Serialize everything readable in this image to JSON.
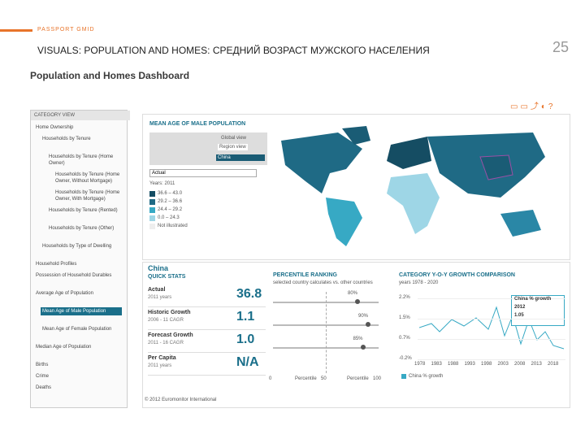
{
  "header": {
    "brand": "PASSPORT GMID",
    "title": "VISUALS: POPULATION AND HOMES: СРЕДНИЙ ВОЗРАСТ МУЖСКОГО НАСЕЛЕНИЯ",
    "page_number": "25"
  },
  "dashboard": {
    "title": "Population and Homes Dashboard",
    "sidebar": {
      "title": "CATEGORY VIEW",
      "items": [
        "Home Ownership",
        "Households by Tenure",
        "Households by Tenure (Home Owner)",
        "Households by Tenure (Home Owner, Without Mortgage)",
        "Households by Tenure (Home Owner, With Mortgage)",
        "Households by Tenure (Rented)",
        "Households by Tenure (Other)",
        "Households by Type of Dwelling",
        "Household Profiles",
        "Possession of Household Durables",
        "Average Age of Population",
        "Mean Age of Male Population",
        "Mean Age of Female Population",
        "Median Age of Population",
        "Births",
        "Crime",
        "Deaths"
      ]
    },
    "map": {
      "title": "MEAN AGE OF MALE POPULATION",
      "views": [
        "Global view",
        "Region view"
      ],
      "search": "China",
      "measure": "Actual",
      "years": "Years: 2011",
      "legend": [
        "36.6 – 43.0",
        "29.2 – 36.6",
        "24.4 – 29.2",
        "0.0 – 24.3",
        "Not illustrated"
      ]
    },
    "country": "China",
    "quick_stats": {
      "title": "QUICK STATS",
      "rows": [
        {
          "label": "Actual",
          "sub": "2011 years",
          "value": "36.8"
        },
        {
          "label": "Historic Growth",
          "sub": "2006 - 11 CAGR",
          "value": "1.1"
        },
        {
          "label": "Forecast Growth",
          "sub": "2011 - 16 CAGR",
          "value": "1.0"
        },
        {
          "label": "Per Capita",
          "sub": "2011 years",
          "value": "N/A"
        }
      ]
    },
    "percentile": {
      "title": "PERCENTILE RANKING",
      "subtitle": "selected country calculates vs. other countries",
      "values": [
        "80%",
        "90%",
        "85%"
      ],
      "axis": [
        "0",
        "Percentile",
        "50",
        "Percentile",
        "100"
      ]
    },
    "growth": {
      "title": "CATEGORY Y-O-Y GROWTH COMPARISON",
      "subtitle": "years 1978 - 2020",
      "yticks": [
        "2.2%",
        "1.5%",
        "0.7%",
        "-0.2%"
      ],
      "xticks": [
        "1978",
        "1983",
        "1988",
        "1993",
        "1998",
        "2003",
        "2008",
        "2013",
        "2018"
      ],
      "legend": "China % growth",
      "tooltip": [
        "China % growth",
        "2012",
        "1.05"
      ]
    },
    "footer": "© 2012 Euromonitor International"
  }
}
